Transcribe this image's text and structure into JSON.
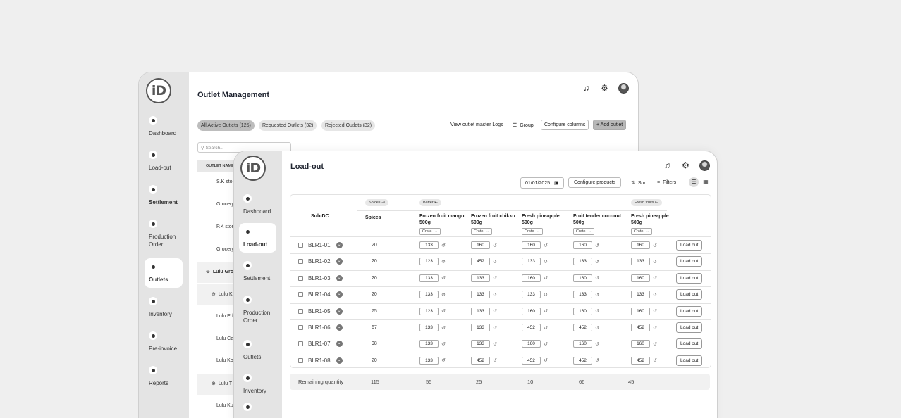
{
  "back_window": {
    "title": "Outlet Management",
    "logo_text": "iD",
    "sidebar": [
      {
        "label": "Dashboard",
        "icon": "dashboard-icon"
      },
      {
        "label": "Load-out",
        "icon": "load-out-icon"
      },
      {
        "label": "Settlement",
        "icon": "settlement-icon"
      },
      {
        "label": "Production Order",
        "icon": "production-order-icon"
      },
      {
        "label": "Outlets",
        "icon": "outlets-icon"
      },
      {
        "label": "Inventory",
        "icon": "inventory-icon"
      },
      {
        "label": "Pre-invoice",
        "icon": "pre-invoice-icon"
      },
      {
        "label": "Reports",
        "icon": "reports-icon"
      }
    ],
    "tabs": [
      "All Active Outlets (125)",
      "Requested Outlets (32)",
      "Rejected Outlets (32)"
    ],
    "master_logs_label": "View outlet master Logs",
    "group_label": "Group",
    "configure_columns_label": "Configure columns",
    "add_outlet_label": "+ Add outlet",
    "search_placeholder": "Search..",
    "outlet_name_header": "OUTLET NAME",
    "outlets": [
      "S.K stores",
      "Grocery",
      "P.K stores",
      "Grocery",
      "Lulu Group",
      "Lulu K",
      "Lulu Ed",
      "Lulu Ca",
      "Lulu Ko",
      "Lulu T",
      "Lulu Ku"
    ]
  },
  "front_window": {
    "title": "Load-out",
    "logo_text": "iD",
    "sidebar": [
      {
        "label": "Dashboard",
        "icon": "dashboard-icon"
      },
      {
        "label": "Load-out",
        "icon": "load-out-icon"
      },
      {
        "label": "Settlement",
        "icon": "settlement-icon"
      },
      {
        "label": "Production Order",
        "icon": "production-order-icon"
      },
      {
        "label": "Outlets",
        "icon": "outlets-icon"
      },
      {
        "label": "Inventory",
        "icon": "inventory-icon"
      }
    ],
    "date": "01/01/2025",
    "configure_products_label": "Configure products",
    "sort_label": "Sort",
    "filters_label": "Filters",
    "table": {
      "subdc_header": "Sub-DC",
      "group_tags": [
        "Spices",
        "Batter",
        "Fresh fruits"
      ],
      "spices_header": "Spices",
      "product_headers": [
        "Frozen fruit mango 500g",
        "Frozen fruit chikku 500g",
        "Fresh pineapple 500g",
        "Fruit tender coconut 500g",
        "Fresh pineapple 500g"
      ],
      "unit_label": "Crate",
      "load_out_label": "Load out",
      "rows": [
        {
          "id": "BLR1-01",
          "spices": "20",
          "values": [
            "133",
            "160",
            "160",
            "160",
            "160"
          ]
        },
        {
          "id": "BLR1-02",
          "spices": "20",
          "values": [
            "123",
            "452",
            "133",
            "133",
            "133"
          ]
        },
        {
          "id": "BLR1-03",
          "spices": "20",
          "values": [
            "133",
            "133",
            "160",
            "160",
            "160"
          ]
        },
        {
          "id": "BLR1-04",
          "spices": "20",
          "values": [
            "133",
            "133",
            "133",
            "133",
            "133"
          ]
        },
        {
          "id": "BLR1-05",
          "spices": "75",
          "values": [
            "123",
            "133",
            "160",
            "160",
            "160"
          ]
        },
        {
          "id": "BLR1-06",
          "spices": "67",
          "values": [
            "133",
            "133",
            "452",
            "452",
            "452"
          ]
        },
        {
          "id": "BLR1-07",
          "spices": "98",
          "values": [
            "133",
            "133",
            "160",
            "160",
            "160"
          ]
        },
        {
          "id": "BLR1-08",
          "spices": "20",
          "values": [
            "133",
            "452",
            "452",
            "452",
            "452"
          ]
        }
      ]
    },
    "remaining": {
      "label": "Remaining quantity",
      "values": [
        "115",
        "55",
        "25",
        "10",
        "66",
        "45"
      ]
    }
  }
}
